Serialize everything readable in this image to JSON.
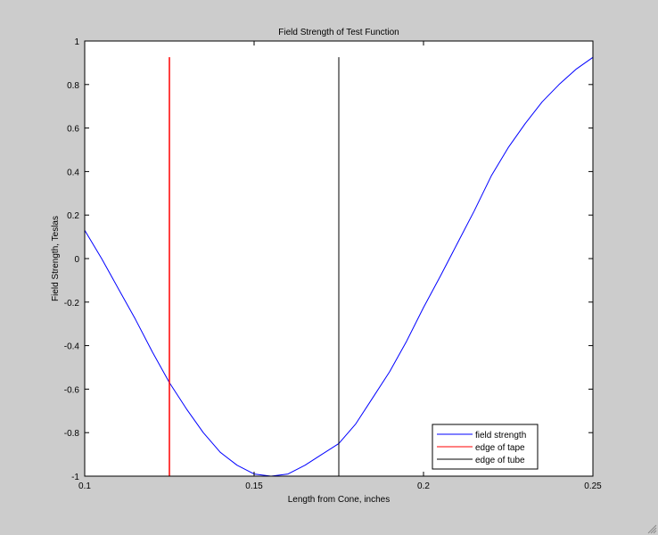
{
  "chart_data": {
    "type": "line",
    "title": "Field Strength of Test Function",
    "xlabel": "Length from Cone, inches",
    "ylabel": "Field Strength, Teslas",
    "xlim": [
      0.1,
      0.25
    ],
    "ylim": [
      -1,
      1
    ],
    "xticks": [
      0.1,
      0.15,
      0.2,
      0.25
    ],
    "xtick_labels": [
      "0.1",
      "0.15",
      "0.2",
      "0.25"
    ],
    "yticks": [
      -1,
      -0.8,
      -0.6,
      -0.4,
      -0.2,
      0,
      0.2,
      0.4,
      0.6,
      0.8,
      1
    ],
    "ytick_labels": [
      "-1",
      "-0.8",
      "-0.6",
      "-0.4",
      "-0.2",
      "0",
      "0.2",
      "0.4",
      "0.6",
      "0.8",
      "1"
    ],
    "grid": false,
    "legend_position": "lower right",
    "series": [
      {
        "name": "field strength",
        "color": "#0000ff",
        "x": [
          0.1,
          0.105,
          0.11,
          0.115,
          0.12,
          0.125,
          0.13,
          0.135,
          0.14,
          0.145,
          0.15,
          0.155,
          0.16,
          0.165,
          0.17,
          0.175,
          0.18,
          0.185,
          0.19,
          0.195,
          0.2,
          0.205,
          0.21,
          0.215,
          0.22,
          0.225,
          0.23,
          0.235,
          0.24,
          0.245,
          0.25
        ],
        "y": [
          0.13,
          0.0,
          -0.14,
          -0.28,
          -0.43,
          -0.57,
          -0.69,
          -0.8,
          -0.89,
          -0.95,
          -0.99,
          -1.0,
          -0.99,
          -0.95,
          -0.9,
          -0.85,
          -0.76,
          -0.64,
          -0.52,
          -0.38,
          -0.225,
          -0.08,
          0.07,
          0.22,
          0.38,
          0.51,
          0.62,
          0.72,
          0.8,
          0.87,
          0.925
        ]
      },
      {
        "name": "edge of tape",
        "color": "#ff0000",
        "x": [
          0.125,
          0.125
        ],
        "y": [
          -1,
          0.926
        ]
      },
      {
        "name": "edge of tube",
        "color": "#000000",
        "x": [
          0.175,
          0.175
        ],
        "y": [
          -1,
          0.926
        ]
      }
    ]
  },
  "legend": {
    "items": [
      {
        "label": "field strength",
        "color": "#0000ff"
      },
      {
        "label": "edge of tape",
        "color": "#ff0000"
      },
      {
        "label": "edge of tube",
        "color": "#000000"
      }
    ]
  },
  "colors": {
    "figure_background": "#cccccc",
    "axes_background": "#ffffff"
  }
}
